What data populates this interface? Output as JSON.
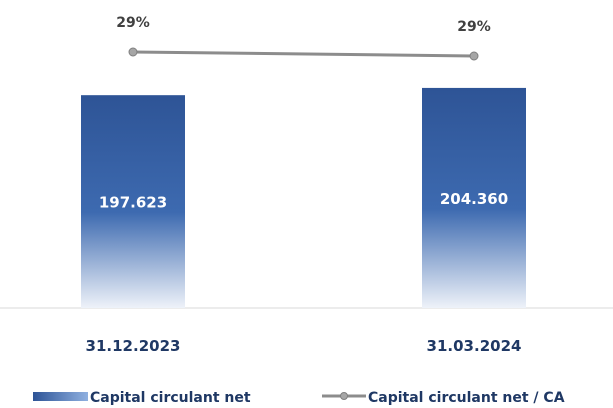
{
  "chart_data": {
    "type": "bar",
    "categories": [
      "31.12.2023",
      "31.03.2024"
    ],
    "series": [
      {
        "name": "Capital circulant net",
        "kind": "bar",
        "values": [
          197623,
          204360
        ],
        "labels": [
          "197.623",
          "204.360"
        ],
        "color": "#2f5597"
      },
      {
        "name": "Capital circulant net / CA",
        "kind": "line",
        "values": [
          29,
          29
        ],
        "labels": [
          "29%",
          "29%"
        ],
        "color": "#8c8c8c"
      }
    ],
    "ylim": [
      0,
      260000
    ],
    "legend": "bottom",
    "grid": false
  }
}
